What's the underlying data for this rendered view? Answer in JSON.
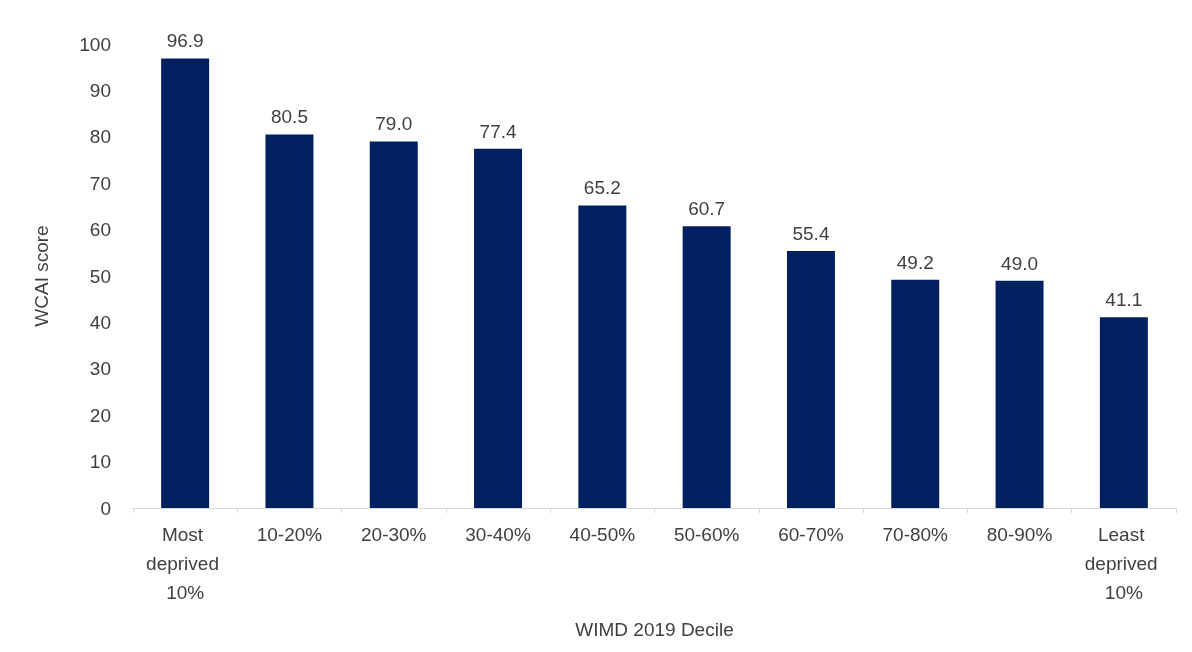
{
  "chart_data": {
    "type": "bar",
    "xlabel": "WIMD 2019 Decile",
    "ylabel": "WCAI score",
    "categories": [
      "Most deprived 10%",
      "10-20%",
      "20-30%",
      "30-40%",
      "40-50%",
      "50-60%",
      "60-70%",
      "70-80%",
      "80-90%",
      "Least deprived 10%"
    ],
    "values": [
      96.9,
      80.5,
      79.0,
      77.4,
      65.2,
      60.7,
      55.4,
      49.2,
      49.0,
      41.1
    ],
    "value_labels": [
      "96.9",
      "80.5",
      "79.0",
      "77.4",
      "65.2",
      "60.7",
      "55.4",
      "49.2",
      "49.0",
      "41.1"
    ],
    "color": "#002060",
    "ylim": [
      0,
      100
    ],
    "yticks": [
      0,
      10,
      20,
      30,
      40,
      50,
      60,
      70,
      80,
      90,
      100
    ],
    "grid": false
  }
}
